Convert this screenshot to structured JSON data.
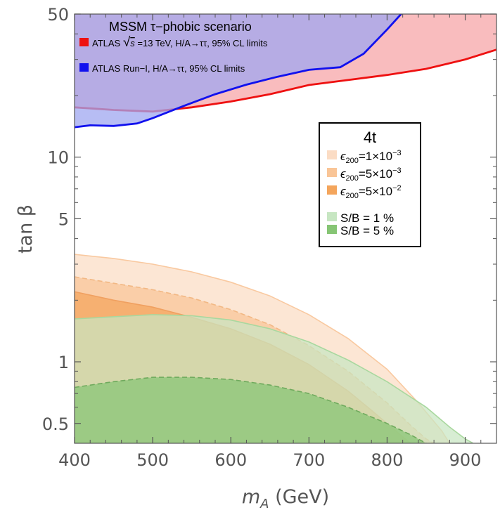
{
  "chart_data": {
    "type": "area",
    "title": "",
    "xlabel_main": "m",
    "xlabel_sub": "A",
    "xlabel_unit": " (GeV)",
    "ylabel": "tan β",
    "xlim": [
      400,
      940
    ],
    "ylim": [
      0.4,
      50
    ],
    "y_scale": "log",
    "grid": false,
    "x_ticks": [
      400,
      500,
      600,
      700,
      800,
      900
    ],
    "x_tick_labels": [
      "400",
      "500",
      "600",
      "700",
      "800",
      "900"
    ],
    "y_ticks": [
      0.5,
      1,
      5,
      10,
      50
    ],
    "y_tick_labels": [
      "0.5",
      "1",
      "5",
      "10",
      "50"
    ],
    "exclusion_legend": {
      "title": "MSSM τ−phobic scenario",
      "entries": [
        {
          "label_prefix": "ATLAS ",
          "sqrt": "√",
          "sqrt_arg": "s",
          "label_suffix": " =13 TeV, H/A→ττ, 95% CL limits",
          "color": "#ee1111"
        },
        {
          "label": "ATLAS Run−I, H/A→ττ, 95% CL limits",
          "color": "#1111ee"
        }
      ]
    },
    "signal_legend": {
      "title": "4t",
      "entries": [
        {
          "pre": "ϵ",
          "sub": "200",
          "mid": "=1×10",
          "sup": "−3",
          "color": "#fbdcc4"
        },
        {
          "pre": "ϵ",
          "sub": "200",
          "mid": "=5×10",
          "sup": "−3",
          "color": "#f9c597"
        },
        {
          "pre": "ϵ",
          "sub": "200",
          "mid": "=5×10",
          "sup": "−2",
          "color": "#f4a55c"
        },
        {
          "label": "S/B = 1 %",
          "color": "#c7e6c2"
        },
        {
          "label": "S/B = 5 %",
          "color": "#86c574"
        }
      ]
    },
    "series": [
      {
        "name": "ATLAS √s =13 TeV, H/A→ττ, 95% CL limits",
        "kind": "exclusion_upper",
        "color": "#ee1111",
        "fill": "#f7a6a8",
        "x": [
          400,
          450,
          500,
          550,
          600,
          650,
          700,
          750,
          800,
          850,
          900,
          940
        ],
        "y": [
          17.5,
          17.0,
          16.7,
          17.5,
          18.7,
          20.3,
          22.5,
          23.8,
          25.2,
          27.0,
          30.0,
          33.5
        ]
      },
      {
        "name": "ATLAS Run−I, H/A→ττ, 95% CL limits",
        "kind": "exclusion_upper",
        "color": "#1111ee",
        "fill": "#9fa7f0",
        "x": [
          400,
          420,
          450,
          480,
          500,
          540,
          580,
          620,
          660,
          700,
          740,
          770,
          800,
          820
        ],
        "y": [
          14.0,
          14.3,
          14.2,
          14.6,
          15.5,
          17.8,
          20.3,
          22.6,
          24.7,
          26.7,
          27.5,
          32.0,
          42.0,
          51.0
        ]
      },
      {
        "name": "ϵ200=1×10−3",
        "kind": "signal_lower",
        "color": "#f9c9a0",
        "fill": "#fbdcc4",
        "x": [
          400,
          450,
          500,
          550,
          600,
          650,
          700,
          750,
          800,
          840,
          870,
          880
        ],
        "y": [
          3.35,
          3.2,
          3.0,
          2.75,
          2.45,
          2.1,
          1.7,
          1.3,
          0.92,
          0.63,
          0.46,
          0.4
        ]
      },
      {
        "name": "ϵ200=5×10−3",
        "kind": "signal_lower",
        "color": "#f2b884",
        "fill": "#f9c597",
        "x": [
          400,
          450,
          500,
          550,
          600,
          650,
          700,
          750,
          800,
          830,
          850,
          860
        ],
        "y": [
          2.6,
          2.42,
          2.25,
          2.05,
          1.8,
          1.52,
          1.2,
          0.9,
          0.63,
          0.49,
          0.42,
          0.4
        ]
      },
      {
        "name": "ϵ200=5×10−2",
        "kind": "signal_lower",
        "color": "#f0a060",
        "fill": "#f4a55c",
        "x": [
          400,
          450,
          500,
          550,
          600,
          650,
          700,
          750,
          780,
          800,
          820,
          830
        ],
        "y": [
          2.2,
          2.0,
          1.85,
          1.65,
          1.45,
          1.22,
          0.97,
          0.72,
          0.58,
          0.5,
          0.43,
          0.4
        ]
      },
      {
        "name": "S/B = 1 %",
        "kind": "signal_lower",
        "color": "#a9d89f",
        "fill": "#c7e6c2",
        "x": [
          400,
          450,
          500,
          550,
          600,
          650,
          700,
          750,
          800,
          850,
          880,
          900,
          910
        ],
        "y": [
          1.62,
          1.66,
          1.7,
          1.68,
          1.6,
          1.45,
          1.25,
          1.02,
          0.8,
          0.6,
          0.48,
          0.42,
          0.4
        ]
      },
      {
        "name": "S/B = 5 %",
        "kind": "signal_lower",
        "color": "#6faa5d",
        "fill": "#86c574",
        "x": [
          400,
          450,
          500,
          550,
          600,
          650,
          700,
          750,
          800,
          830,
          845,
          850
        ],
        "y": [
          0.75,
          0.8,
          0.84,
          0.84,
          0.82,
          0.77,
          0.7,
          0.6,
          0.5,
          0.44,
          0.41,
          0.4
        ]
      }
    ]
  }
}
